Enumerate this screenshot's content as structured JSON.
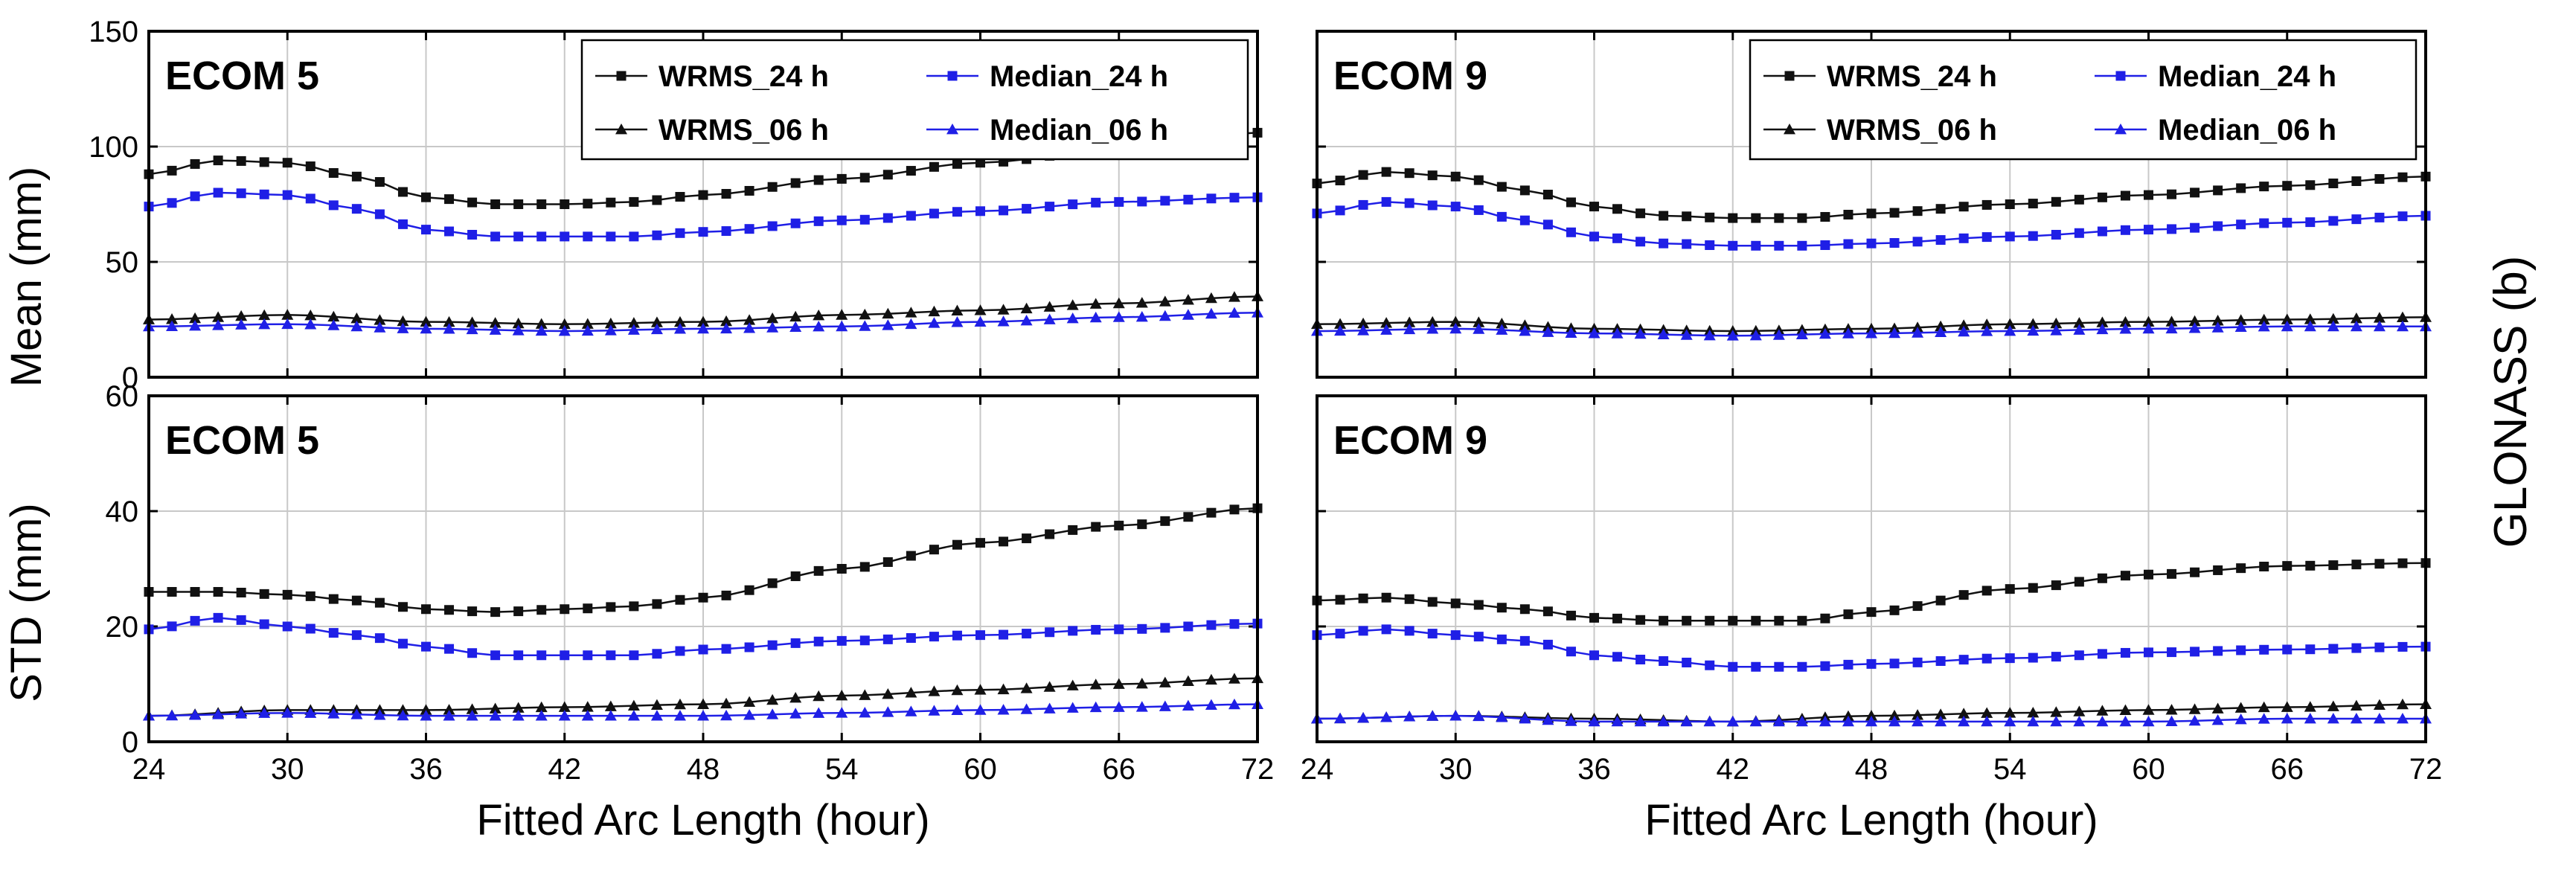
{
  "figure": {
    "side_label": "GLONASS (b)",
    "xlabel": "Fitted Arc Length (hour)",
    "row_ylabels": [
      "Mean (mm)",
      "STD (mm)"
    ]
  },
  "colors": {
    "black": "#111111",
    "blue": "#1f1fe6",
    "grid": "#c8c8c8"
  },
  "chart_data": [
    {
      "id": "mean-ecom5",
      "type": "line",
      "title": "ECOM 5",
      "xlabel": "Fitted Arc Length (hour)",
      "ylabel": "Mean (mm)",
      "xlim": [
        24,
        72
      ],
      "ylim": [
        0,
        150
      ],
      "xticks": [
        24,
        30,
        36,
        42,
        48,
        54,
        60,
        66,
        72
      ],
      "yticks": [
        0,
        50,
        100,
        150
      ],
      "legend": "top-right",
      "series": [
        {
          "name": "WRMS_24 h",
          "color": "#111111",
          "marker": "square",
          "anchors": [
            [
              24,
              88
            ],
            [
              27,
              94
            ],
            [
              30,
              93
            ],
            [
              33,
              87
            ],
            [
              36,
              78
            ],
            [
              39,
              75
            ],
            [
              42,
              75
            ],
            [
              45,
              76
            ],
            [
              48,
              79
            ],
            [
              54,
              86
            ],
            [
              60,
              93
            ],
            [
              66,
              99
            ],
            [
              72,
              106
            ]
          ]
        },
        {
          "name": "Median_24 h",
          "color": "#1f1fe6",
          "marker": "square",
          "anchors": [
            [
              24,
              74
            ],
            [
              27,
              80
            ],
            [
              30,
              79
            ],
            [
              33,
              73
            ],
            [
              36,
              64
            ],
            [
              39,
              61
            ],
            [
              42,
              61
            ],
            [
              45,
              61
            ],
            [
              48,
              63
            ],
            [
              54,
              68
            ],
            [
              60,
              72
            ],
            [
              66,
              76
            ],
            [
              72,
              78
            ]
          ]
        },
        {
          "name": "WRMS_06 h",
          "color": "#111111",
          "marker": "triangle",
          "anchors": [
            [
              24,
              25
            ],
            [
              30,
              27
            ],
            [
              36,
              24
            ],
            [
              42,
              23
            ],
            [
              48,
              24
            ],
            [
              54,
              27
            ],
            [
              60,
              29
            ],
            [
              66,
              32
            ],
            [
              72,
              35
            ]
          ]
        },
        {
          "name": "Median_06 h",
          "color": "#1f1fe6",
          "marker": "triangle",
          "anchors": [
            [
              24,
              22
            ],
            [
              30,
              23
            ],
            [
              36,
              21
            ],
            [
              42,
              20
            ],
            [
              48,
              21
            ],
            [
              54,
              22
            ],
            [
              60,
              24
            ],
            [
              66,
              26
            ],
            [
              72,
              28
            ]
          ]
        }
      ]
    },
    {
      "id": "mean-ecom9",
      "type": "line",
      "title": "ECOM 9",
      "xlabel": "Fitted Arc Length (hour)",
      "ylabel": "",
      "xlim": [
        24,
        72
      ],
      "ylim": [
        0,
        150
      ],
      "xticks": [
        24,
        30,
        36,
        42,
        48,
        54,
        60,
        66,
        72
      ],
      "yticks": [
        0,
        50,
        100,
        150
      ],
      "legend": "top-right",
      "series": [
        {
          "name": "WRMS_24 h",
          "color": "#111111",
          "marker": "square",
          "anchors": [
            [
              24,
              84
            ],
            [
              27,
              89
            ],
            [
              30,
              87
            ],
            [
              33,
              81
            ],
            [
              36,
              74
            ],
            [
              39,
              70
            ],
            [
              42,
              69
            ],
            [
              45,
              69
            ],
            [
              48,
              71
            ],
            [
              54,
              75
            ],
            [
              60,
              79
            ],
            [
              66,
              83
            ],
            [
              72,
              87
            ]
          ]
        },
        {
          "name": "Median_24 h",
          "color": "#1f1fe6",
          "marker": "square",
          "anchors": [
            [
              24,
              71
            ],
            [
              27,
              76
            ],
            [
              30,
              74
            ],
            [
              33,
              68
            ],
            [
              36,
              61
            ],
            [
              39,
              58
            ],
            [
              42,
              57
            ],
            [
              45,
              57
            ],
            [
              48,
              58
            ],
            [
              54,
              61
            ],
            [
              60,
              64
            ],
            [
              66,
              67
            ],
            [
              72,
              70
            ]
          ]
        },
        {
          "name": "WRMS_06 h",
          "color": "#111111",
          "marker": "triangle",
          "anchors": [
            [
              24,
              23
            ],
            [
              30,
              24
            ],
            [
              36,
              21
            ],
            [
              42,
              20
            ],
            [
              48,
              21
            ],
            [
              54,
              23
            ],
            [
              60,
              24
            ],
            [
              66,
              25
            ],
            [
              72,
              26
            ]
          ]
        },
        {
          "name": "Median_06 h",
          "color": "#1f1fe6",
          "marker": "triangle",
          "anchors": [
            [
              24,
              20
            ],
            [
              30,
              21
            ],
            [
              36,
              19
            ],
            [
              42,
              18
            ],
            [
              48,
              19
            ],
            [
              54,
              20
            ],
            [
              60,
              21
            ],
            [
              66,
              22
            ],
            [
              72,
              22
            ]
          ]
        }
      ]
    },
    {
      "id": "std-ecom5",
      "type": "line",
      "title": "ECOM 5",
      "xlabel": "Fitted Arc Length (hour)",
      "ylabel": "STD (mm)",
      "xlim": [
        24,
        72
      ],
      "ylim": [
        0,
        60
      ],
      "xticks": [
        24,
        30,
        36,
        42,
        48,
        54,
        60,
        66,
        72
      ],
      "yticks": [
        0,
        20,
        40,
        60
      ],
      "legend": "none",
      "series": [
        {
          "name": "WRMS_24 h",
          "color": "#111111",
          "marker": "square",
          "anchors": [
            [
              24,
              26
            ],
            [
              27,
              26
            ],
            [
              30,
              25.5
            ],
            [
              33,
              24.5
            ],
            [
              36,
              23
            ],
            [
              39,
              22.5
            ],
            [
              42,
              23
            ],
            [
              45,
              23.5
            ],
            [
              48,
              25
            ],
            [
              54,
              30
            ],
            [
              60,
              34.5
            ],
            [
              66,
              37.5
            ],
            [
              72,
              40.5
            ]
          ]
        },
        {
          "name": "Median_24 h",
          "color": "#1f1fe6",
          "marker": "square",
          "anchors": [
            [
              24,
              19.5
            ],
            [
              27,
              21.5
            ],
            [
              30,
              20
            ],
            [
              33,
              18.5
            ],
            [
              36,
              16.5
            ],
            [
              39,
              15
            ],
            [
              42,
              15
            ],
            [
              45,
              15
            ],
            [
              48,
              16
            ],
            [
              54,
              17.5
            ],
            [
              60,
              18.5
            ],
            [
              66,
              19.5
            ],
            [
              72,
              20.5
            ]
          ]
        },
        {
          "name": "WRMS_06 h",
          "color": "#111111",
          "marker": "triangle",
          "anchors": [
            [
              24,
              4.5
            ],
            [
              30,
              5.5
            ],
            [
              36,
              5.5
            ],
            [
              42,
              6
            ],
            [
              48,
              6.5
            ],
            [
              54,
              8
            ],
            [
              60,
              9
            ],
            [
              66,
              10
            ],
            [
              72,
              11
            ]
          ]
        },
        {
          "name": "Median_06 h",
          "color": "#1f1fe6",
          "marker": "triangle",
          "anchors": [
            [
              24,
              4.5
            ],
            [
              30,
              5
            ],
            [
              36,
              4.5
            ],
            [
              42,
              4.5
            ],
            [
              48,
              4.5
            ],
            [
              54,
              5
            ],
            [
              60,
              5.5
            ],
            [
              66,
              6
            ],
            [
              72,
              6.5
            ]
          ]
        }
      ]
    },
    {
      "id": "std-ecom9",
      "type": "line",
      "title": "ECOM 9",
      "xlabel": "Fitted Arc Length (hour)",
      "ylabel": "",
      "xlim": [
        24,
        72
      ],
      "ylim": [
        0,
        60
      ],
      "xticks": [
        24,
        30,
        36,
        42,
        48,
        54,
        60,
        66,
        72
      ],
      "yticks": [
        0,
        20,
        40,
        60
      ],
      "legend": "none",
      "series": [
        {
          "name": "WRMS_24 h",
          "color": "#111111",
          "marker": "square",
          "anchors": [
            [
              24,
              24.5
            ],
            [
              27,
              25
            ],
            [
              30,
              24
            ],
            [
              33,
              23
            ],
            [
              36,
              21.5
            ],
            [
              39,
              21
            ],
            [
              42,
              21
            ],
            [
              45,
              21
            ],
            [
              48,
              22.5
            ],
            [
              54,
              26.5
            ],
            [
              60,
              29
            ],
            [
              66,
              30.5
            ],
            [
              72,
              31
            ]
          ]
        },
        {
          "name": "Median_24 h",
          "color": "#1f1fe6",
          "marker": "square",
          "anchors": [
            [
              24,
              18.5
            ],
            [
              27,
              19.5
            ],
            [
              30,
              18.5
            ],
            [
              33,
              17.5
            ],
            [
              36,
              15
            ],
            [
              39,
              14
            ],
            [
              42,
              13
            ],
            [
              45,
              13
            ],
            [
              48,
              13.5
            ],
            [
              54,
              14.5
            ],
            [
              60,
              15.5
            ],
            [
              66,
              16
            ],
            [
              72,
              16.5
            ]
          ]
        },
        {
          "name": "WRMS_06 h",
          "color": "#111111",
          "marker": "triangle",
          "anchors": [
            [
              24,
              4
            ],
            [
              30,
              4.5
            ],
            [
              36,
              4
            ],
            [
              42,
              3.5
            ],
            [
              48,
              4.5
            ],
            [
              54,
              5
            ],
            [
              60,
              5.5
            ],
            [
              66,
              6
            ],
            [
              72,
              6.5
            ]
          ]
        },
        {
          "name": "Median_06 h",
          "color": "#1f1fe6",
          "marker": "triangle",
          "anchors": [
            [
              24,
              4
            ],
            [
              30,
              4.5
            ],
            [
              36,
              3.5
            ],
            [
              42,
              3.5
            ],
            [
              48,
              3.5
            ],
            [
              54,
              3.5
            ],
            [
              60,
              3.5
            ],
            [
              66,
              4
            ],
            [
              72,
              4
            ]
          ]
        }
      ]
    }
  ]
}
